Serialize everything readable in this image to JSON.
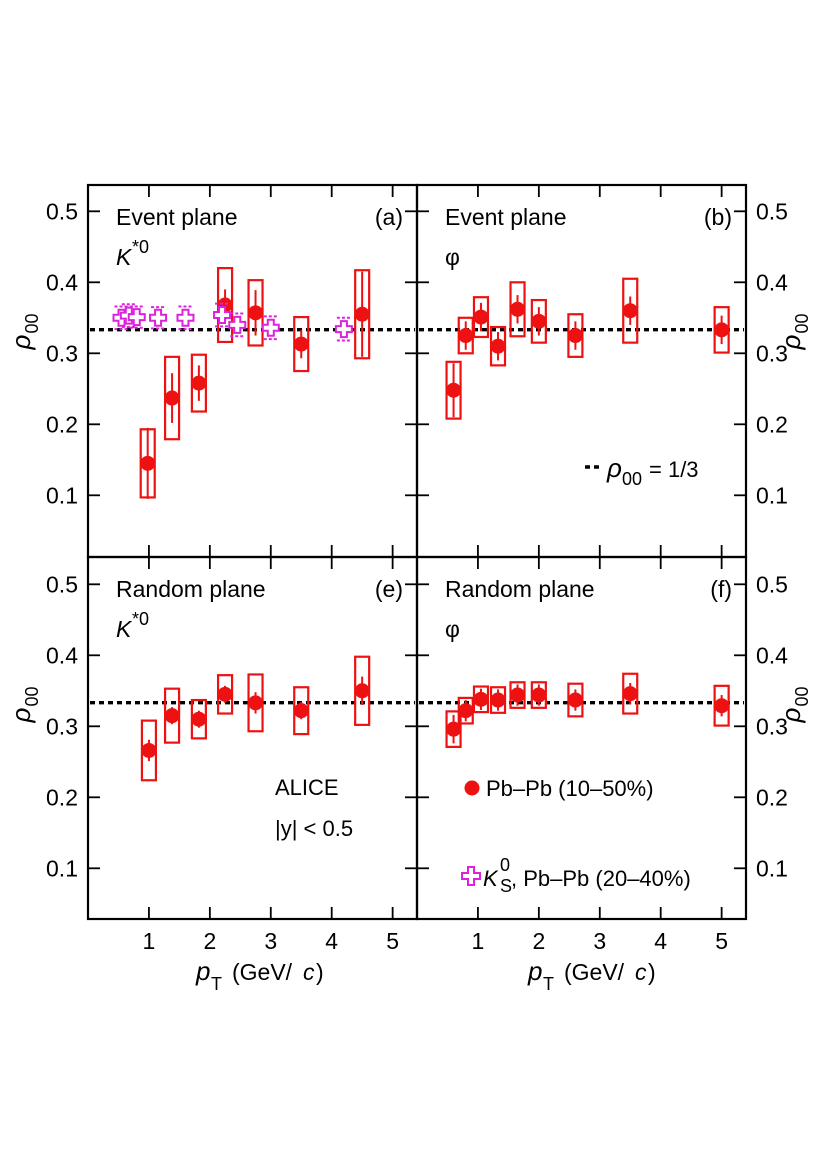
{
  "chart_data": [
    {
      "id": "a",
      "type": "scatter",
      "title": "Event plane",
      "letter": "(a)",
      "species": "K*0",
      "xlim": [
        0,
        5.4
      ],
      "ylim": [
        0.02,
        0.53
      ],
      "xticks": [
        1,
        2,
        3,
        4,
        5
      ],
      "xtick_labels": [
        "1",
        "2",
        "3",
        "4",
        "5"
      ],
      "yticks": [
        0.1,
        0.2,
        0.3,
        0.4,
        0.5
      ],
      "ytick_labels": [
        "0.1",
        "0.2",
        "0.3",
        "0.4",
        "0.5"
      ],
      "ylabel": "ρ00",
      "yaxis_side": "left",
      "show_xlabels": false,
      "reference_line": 0.3333,
      "series": [
        {
          "name": "Pb–Pb (10–50%)",
          "color": "#ee1111",
          "marker": "circle",
          "points": [
            {
              "x": 0.98,
              "y": 0.145,
              "stat": 0.05,
              "sys": 0.048
            },
            {
              "x": 1.38,
              "y": 0.237,
              "stat": 0.035,
              "sys": 0.058
            },
            {
              "x": 1.82,
              "y": 0.258,
              "stat": 0.025,
              "sys": 0.04
            },
            {
              "x": 2.25,
              "y": 0.368,
              "stat": 0.022,
              "sys": 0.052
            },
            {
              "x": 2.75,
              "y": 0.357,
              "stat": 0.032,
              "sys": 0.046
            },
            {
              "x": 3.5,
              "y": 0.313,
              "stat": 0.02,
              "sys": 0.038
            },
            {
              "x": 4.5,
              "y": 0.355,
              "stat": 0.06,
              "sys": 0.062
            }
          ]
        },
        {
          "name": "K0S, Pb–Pb (20–40%)",
          "color": "#dd22dd",
          "marker": "open-cross",
          "points": [
            {
              "x": 0.55,
              "y": 0.35,
              "stat": 0.016
            },
            {
              "x": 0.67,
              "y": 0.353,
              "stat": 0.016
            },
            {
              "x": 0.8,
              "y": 0.351,
              "stat": 0.015
            },
            {
              "x": 1.15,
              "y": 0.35,
              "stat": 0.015
            },
            {
              "x": 1.6,
              "y": 0.35,
              "stat": 0.016
            },
            {
              "x": 2.2,
              "y": 0.354,
              "stat": 0.016
            },
            {
              "x": 2.45,
              "y": 0.34,
              "stat": 0.016
            },
            {
              "x": 3.0,
              "y": 0.336,
              "stat": 0.016
            },
            {
              "x": 4.2,
              "y": 0.334,
              "stat": 0.016
            }
          ]
        }
      ]
    },
    {
      "id": "b",
      "type": "scatter",
      "title": "Event plane",
      "letter": "(b)",
      "species": "φ",
      "xlim": [
        0,
        5.4
      ],
      "ylim": [
        0.02,
        0.53
      ],
      "xticks": [
        1,
        2,
        3,
        4,
        5
      ],
      "xtick_labels": [
        "1",
        "2",
        "3",
        "4",
        "5"
      ],
      "yticks": [
        0.1,
        0.2,
        0.3,
        0.4,
        0.5
      ],
      "ytick_labels": [
        "0.1",
        "0.2",
        "0.3",
        "0.4",
        "0.5"
      ],
      "ylabel": "ρ00",
      "yaxis_side": "right",
      "show_xlabels": false,
      "reference_line": 0.3333,
      "legend": {
        "label": "= 1/3",
        "symbol": "ρ00"
      },
      "series": [
        {
          "name": "Pb–Pb (10–50%)",
          "color": "#ee1111",
          "marker": "circle",
          "points": [
            {
              "x": 0.6,
              "y": 0.248,
              "stat": 0.038,
              "sys": 0.04
            },
            {
              "x": 0.8,
              "y": 0.325,
              "stat": 0.02,
              "sys": 0.025
            },
            {
              "x": 1.05,
              "y": 0.351,
              "stat": 0.02,
              "sys": 0.028
            },
            {
              "x": 1.33,
              "y": 0.31,
              "stat": 0.02,
              "sys": 0.027
            },
            {
              "x": 1.65,
              "y": 0.362,
              "stat": 0.02,
              "sys": 0.038
            },
            {
              "x": 2.0,
              "y": 0.345,
              "stat": 0.02,
              "sys": 0.03
            },
            {
              "x": 2.6,
              "y": 0.325,
              "stat": 0.02,
              "sys": 0.03
            },
            {
              "x": 3.5,
              "y": 0.36,
              "stat": 0.02,
              "sys": 0.045
            },
            {
              "x": 5.0,
              "y": 0.333,
              "stat": 0.02,
              "sys": 0.032
            }
          ]
        }
      ]
    },
    {
      "id": "e",
      "type": "scatter",
      "title": "Random plane",
      "letter": "(e)",
      "species": "K*0",
      "xlim": [
        0,
        5.4
      ],
      "ylim": [
        0.02,
        0.53
      ],
      "xticks": [
        1,
        2,
        3,
        4,
        5
      ],
      "xtick_labels": [
        "1",
        "2",
        "3",
        "4",
        "5"
      ],
      "yticks": [
        0.1,
        0.2,
        0.3,
        0.4,
        0.5
      ],
      "ytick_labels": [
        "0.1",
        "0.2",
        "0.3",
        "0.4",
        "0.5"
      ],
      "ylabel": "ρ00",
      "yaxis_side": "left",
      "show_xlabels": true,
      "reference_line": 0.3333,
      "series": [
        {
          "name": "Pb–Pb (10–50%)",
          "color": "#ee1111",
          "marker": "circle",
          "points": [
            {
              "x": 1.0,
              "y": 0.266,
              "stat": 0.015,
              "sys": 0.042
            },
            {
              "x": 1.38,
              "y": 0.315,
              "stat": 0.012,
              "sys": 0.038
            },
            {
              "x": 1.82,
              "y": 0.31,
              "stat": 0.012,
              "sys": 0.027
            },
            {
              "x": 2.25,
              "y": 0.345,
              "stat": 0.012,
              "sys": 0.027
            },
            {
              "x": 2.75,
              "y": 0.333,
              "stat": 0.015,
              "sys": 0.04
            },
            {
              "x": 3.5,
              "y": 0.322,
              "stat": 0.012,
              "sys": 0.033
            },
            {
              "x": 4.5,
              "y": 0.35,
              "stat": 0.02,
              "sys": 0.048
            }
          ]
        }
      ]
    },
    {
      "id": "f",
      "type": "scatter",
      "title": "Random plane",
      "letter": "(f)",
      "species": "φ",
      "xlim": [
        0,
        5.4
      ],
      "ylim": [
        0.02,
        0.53
      ],
      "xticks": [
        1,
        2,
        3,
        4,
        5
      ],
      "xtick_labels": [
        "1",
        "2",
        "3",
        "4",
        "5"
      ],
      "yticks": [
        0.1,
        0.2,
        0.3,
        0.4,
        0.5
      ],
      "ytick_labels": [
        "0.1",
        "0.2",
        "0.3",
        "0.4",
        "0.5"
      ],
      "ylabel": "ρ00",
      "yaxis_side": "right",
      "show_xlabels": true,
      "reference_line": 0.3333,
      "series": [
        {
          "name": "Pb–Pb (10–50%)",
          "color": "#ee1111",
          "marker": "circle",
          "points": [
            {
              "x": 0.6,
              "y": 0.296,
              "stat": 0.02,
              "sys": 0.025
            },
            {
              "x": 0.8,
              "y": 0.322,
              "stat": 0.015,
              "sys": 0.018
            },
            {
              "x": 1.05,
              "y": 0.338,
              "stat": 0.015,
              "sys": 0.018
            },
            {
              "x": 1.33,
              "y": 0.337,
              "stat": 0.015,
              "sys": 0.018
            },
            {
              "x": 1.65,
              "y": 0.344,
              "stat": 0.015,
              "sys": 0.018
            },
            {
              "x": 2.0,
              "y": 0.344,
              "stat": 0.015,
              "sys": 0.018
            },
            {
              "x": 2.6,
              "y": 0.337,
              "stat": 0.015,
              "sys": 0.023
            },
            {
              "x": 3.5,
              "y": 0.346,
              "stat": 0.015,
              "sys": 0.028
            },
            {
              "x": 5.0,
              "y": 0.329,
              "stat": 0.015,
              "sys": 0.028
            }
          ]
        }
      ]
    }
  ],
  "xlabel_text": "(GeV/",
  "xlabel_symbol": "p",
  "xlabel_sub": "T",
  "xlabel_c": "c",
  "xlabel_close": ")",
  "annotations": {
    "experiment": "ALICE",
    "rapidity": "|y| < 0.5",
    "legend_pbpb": "Pb–Pb (10–50%)",
    "legend_k0s": ", Pb–Pb (20–40%)",
    "legend_k0s_symbol": "K",
    "legend_k0s_sup": "0",
    "legend_k0s_sub": "S"
  },
  "colors": {
    "red": "#ee1111",
    "magenta": "#dd22dd"
  }
}
